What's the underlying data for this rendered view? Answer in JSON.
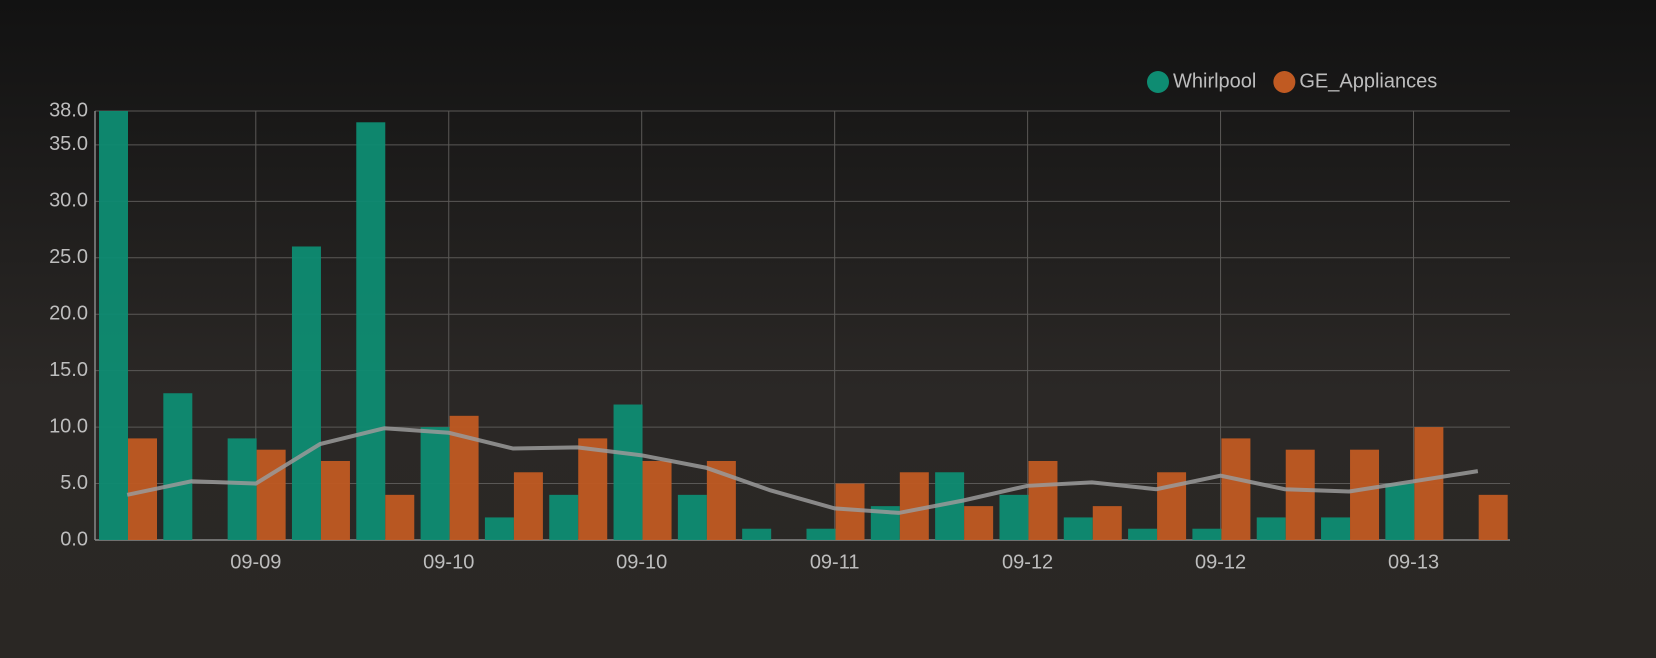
{
  "chart_data": {
    "type": "bar",
    "categories": [
      null,
      null,
      "09-09",
      null,
      null,
      "09-10",
      null,
      null,
      "09-10",
      null,
      null,
      "09-11",
      null,
      null,
      "09-12",
      null,
      null,
      "09-12",
      null,
      null,
      "09-13",
      null
    ],
    "series": [
      {
        "name": "Whirlpool",
        "color": "#0e8c72",
        "values": [
          38,
          13,
          9,
          26,
          37,
          10,
          2,
          4,
          12,
          4,
          1,
          1,
          3,
          6,
          4,
          2,
          1,
          1,
          2,
          2,
          5,
          0
        ]
      },
      {
        "name": "GE_Appliances",
        "color": "#c05a22",
        "values": [
          9,
          0,
          8,
          7,
          4,
          11,
          6,
          9,
          7,
          7,
          0,
          5,
          6,
          3,
          7,
          3,
          6,
          9,
          8,
          8,
          10,
          4
        ]
      },
      {
        "type": "line",
        "color": "#9a9a9a",
        "values": [
          4,
          5.2,
          5.0,
          8.5,
          9.9,
          9.5,
          8.1,
          8.2,
          7.5,
          6.4,
          4.4,
          2.8,
          2.4,
          3.5,
          4.8,
          5.1,
          4.5,
          5.7,
          4.5,
          4.3,
          5.2,
          6.1
        ]
      }
    ],
    "ylim": [
      0,
      38
    ],
    "yticks": [
      {
        "value": 0,
        "label": "0.0"
      },
      {
        "value": 5,
        "label": "5.0"
      },
      {
        "value": 10,
        "label": "10.0"
      },
      {
        "value": 15,
        "label": "15.0"
      },
      {
        "value": 20,
        "label": "20.0"
      },
      {
        "value": 25,
        "label": "25.0"
      },
      {
        "value": 30,
        "label": "30.0"
      },
      {
        "value": 35,
        "label": "35.0"
      },
      {
        "value": 38,
        "label": "38.0"
      }
    ],
    "grid": true,
    "legend": "top-right"
  }
}
